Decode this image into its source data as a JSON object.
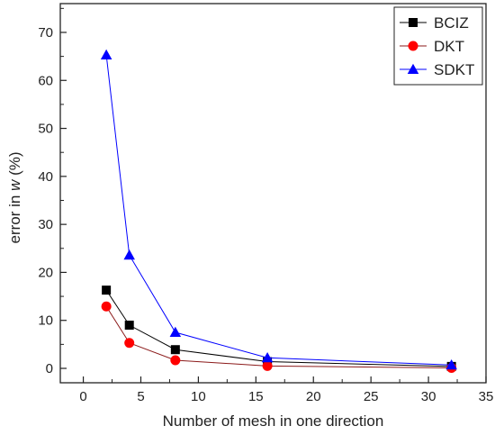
{
  "chart_data": {
    "type": "line",
    "xlabel": "Number of mesh in one direction",
    "ylabel_prefix": "error in ",
    "ylabel_var": "w",
    "ylabel_suffix": " (%)",
    "xlim": [
      -2,
      35
    ],
    "ylim": [
      -3,
      76
    ],
    "xticks": [
      0,
      5,
      10,
      15,
      20,
      25,
      30,
      35
    ],
    "yticks": [
      0,
      10,
      20,
      30,
      40,
      50,
      60,
      70
    ],
    "legend_position": "top-right",
    "grid": false,
    "x": [
      2,
      4,
      8,
      16,
      32
    ],
    "series": [
      {
        "name": "BCIZ",
        "marker": "square",
        "color": "#000000",
        "line_color": "#000000",
        "values": [
          16.3,
          9.0,
          3.9,
          1.4,
          0.4
        ]
      },
      {
        "name": "DKT",
        "marker": "circle",
        "color": "#ff0000",
        "line_color": "#8b1a1a",
        "values": [
          12.9,
          5.3,
          1.7,
          0.5,
          0.1
        ]
      },
      {
        "name": "SDKT",
        "marker": "triangle",
        "color": "#0000ff",
        "line_color": "#0000ff",
        "values": [
          65.3,
          23.6,
          7.5,
          2.2,
          0.7
        ]
      }
    ]
  }
}
